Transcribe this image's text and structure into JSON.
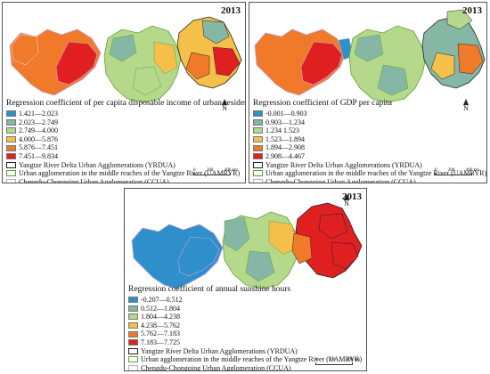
{
  "year": "2013",
  "north_label": "N",
  "scale_labels": [
    "0",
    "200",
    "400 km"
  ],
  "panels": [
    {
      "id": "a",
      "title": "Regression coefficient of per capita disposable income of urban residents",
      "classes": [
        {
          "label": "1.421—2.023",
          "color": "#2f8fca"
        },
        {
          "label": "2.023—2.749",
          "color": "#86b7a4"
        },
        {
          "label": "2.749—4.000",
          "color": "#b6d88a"
        },
        {
          "label": "4.000—5.876",
          "color": "#f4c04a"
        },
        {
          "label": "5.876—7.451",
          "color": "#f07a2a"
        },
        {
          "label": "7.451—9.834",
          "color": "#e02020"
        }
      ]
    },
    {
      "id": "b",
      "title": "Regression coefficient of GDP per capita",
      "classes": [
        {
          "label": "-0.001—0.903",
          "color": "#2f8fca"
        },
        {
          "label": "0.903—1.234",
          "color": "#86b7a4"
        },
        {
          "label": "1.234   1.523",
          "color": "#b6d88a"
        },
        {
          "label": "1.523—1.894",
          "color": "#f4c04a"
        },
        {
          "label": "1.894—2.908",
          "color": "#f07a2a"
        },
        {
          "label": "2.908—4.467",
          "color": "#e02020"
        }
      ]
    },
    {
      "id": "c",
      "title": "Regression coefficient of annual sunshine hours",
      "classes": [
        {
          "label": "-0.207—0.512",
          "color": "#2f8fca"
        },
        {
          "label": "0.512—1.804",
          "color": "#86b7a4"
        },
        {
          "label": "1.804—4.238",
          "color": "#b6d88a"
        },
        {
          "label": "4.238—5.762",
          "color": "#f4c04a"
        },
        {
          "label": "5.762—7.183",
          "color": "#f07a2a"
        },
        {
          "label": "7.183—7.725",
          "color": "#e02020"
        }
      ]
    }
  ],
  "boundaries": [
    {
      "label": "Yangtze River Delta Urban Agglomerations (YRDUA)",
      "color": "#222222"
    },
    {
      "label": "Urban agglomeration in the middle reaches of the Yangtze River (UAMRYR)",
      "color": "#5aa33a"
    },
    {
      "label": "Chengdu-Chongqing Urban Agglomeration (CCUA)",
      "color": "#c6a4d8"
    }
  ]
}
